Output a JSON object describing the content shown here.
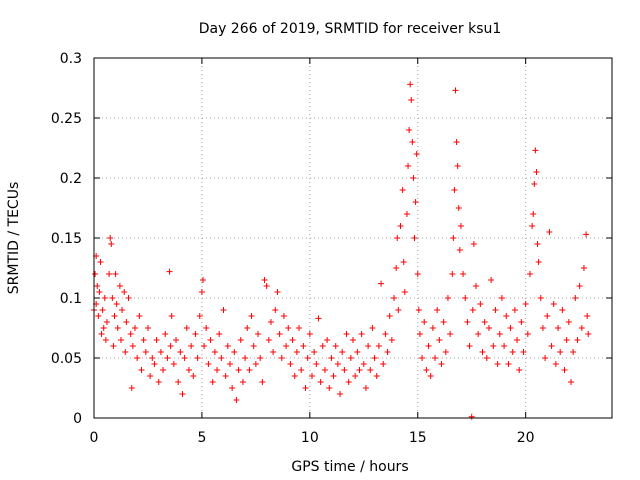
{
  "chart_data": {
    "type": "scatter",
    "title": "Day 266 of 2019, SRMTID for receiver ksu1",
    "xlabel": "GPS time / hours",
    "ylabel": "SRMTID / TECUs",
    "xlim": [
      0,
      24
    ],
    "ylim": [
      0,
      0.3
    ],
    "x_ticks": [
      0,
      5,
      10,
      15,
      20
    ],
    "x_tick_labels": [
      "0",
      "5",
      "10",
      "15",
      "20"
    ],
    "y_ticks": [
      0,
      0.05,
      0.1,
      0.15,
      0.2,
      0.25,
      0.3
    ],
    "y_tick_labels": [
      "0",
      "0.05",
      "0.1",
      "0.15",
      "0.2",
      "0.25",
      "0.3"
    ],
    "grid": true,
    "marker": "+",
    "color": "#ff0000",
    "series": [
      {
        "name": "SRMTID",
        "points": [
          [
            0.0,
            0.09
          ],
          [
            0.05,
            0.12
          ],
          [
            0.1,
            0.135
          ],
          [
            0.1,
            0.095
          ],
          [
            0.15,
            0.11
          ],
          [
            0.2,
            0.085
          ],
          [
            0.25,
            0.105
          ],
          [
            0.3,
            0.13
          ],
          [
            0.35,
            0.07
          ],
          [
            0.4,
            0.09
          ],
          [
            0.45,
            0.075
          ],
          [
            0.5,
            0.1
          ],
          [
            0.55,
            0.065
          ],
          [
            0.6,
            0.08
          ],
          [
            0.7,
            0.12
          ],
          [
            0.75,
            0.15
          ],
          [
            0.8,
            0.145
          ],
          [
            0.85,
            0.1
          ],
          [
            0.9,
            0.06
          ],
          [
            0.95,
            0.085
          ],
          [
            1.0,
            0.12
          ],
          [
            1.05,
            0.095
          ],
          [
            1.1,
            0.075
          ],
          [
            1.2,
            0.11
          ],
          [
            1.25,
            0.065
          ],
          [
            1.3,
            0.09
          ],
          [
            1.4,
            0.105
          ],
          [
            1.45,
            0.055
          ],
          [
            1.5,
            0.08
          ],
          [
            1.6,
            0.1
          ],
          [
            1.7,
            0.07
          ],
          [
            1.75,
            0.025
          ],
          [
            1.8,
            0.06
          ],
          [
            1.9,
            0.075
          ],
          [
            2.0,
            0.05
          ],
          [
            2.1,
            0.085
          ],
          [
            2.2,
            0.04
          ],
          [
            2.3,
            0.065
          ],
          [
            2.4,
            0.055
          ],
          [
            2.5,
            0.075
          ],
          [
            2.6,
            0.035
          ],
          [
            2.7,
            0.05
          ],
          [
            2.8,
            0.045
          ],
          [
            2.9,
            0.065
          ],
          [
            3.0,
            0.03
          ],
          [
            3.1,
            0.055
          ],
          [
            3.2,
            0.04
          ],
          [
            3.3,
            0.07
          ],
          [
            3.4,
            0.05
          ],
          [
            3.5,
            0.122
          ],
          [
            3.55,
            0.06
          ],
          [
            3.6,
            0.085
          ],
          [
            3.7,
            0.045
          ],
          [
            3.8,
            0.065
          ],
          [
            3.9,
            0.03
          ],
          [
            4.0,
            0.055
          ],
          [
            4.1,
            0.02
          ],
          [
            4.2,
            0.05
          ],
          [
            4.3,
            0.075
          ],
          [
            4.4,
            0.04
          ],
          [
            4.5,
            0.06
          ],
          [
            4.6,
            0.035
          ],
          [
            4.7,
            0.07
          ],
          [
            4.8,
            0.05
          ],
          [
            4.9,
            0.085
          ],
          [
            5.0,
            0.105
          ],
          [
            5.05,
            0.115
          ],
          [
            5.1,
            0.06
          ],
          [
            5.2,
            0.075
          ],
          [
            5.3,
            0.045
          ],
          [
            5.4,
            0.065
          ],
          [
            5.5,
            0.03
          ],
          [
            5.6,
            0.055
          ],
          [
            5.7,
            0.04
          ],
          [
            5.8,
            0.07
          ],
          [
            5.9,
            0.05
          ],
          [
            6.0,
            0.09
          ],
          [
            6.1,
            0.035
          ],
          [
            6.2,
            0.06
          ],
          [
            6.3,
            0.045
          ],
          [
            6.4,
            0.025
          ],
          [
            6.5,
            0.055
          ],
          [
            6.6,
            0.015
          ],
          [
            6.7,
            0.04
          ],
          [
            6.8,
            0.065
          ],
          [
            6.9,
            0.03
          ],
          [
            7.0,
            0.05
          ],
          [
            7.1,
            0.075
          ],
          [
            7.2,
            0.04
          ],
          [
            7.3,
            0.085
          ],
          [
            7.4,
            0.06
          ],
          [
            7.5,
            0.045
          ],
          [
            7.6,
            0.07
          ],
          [
            7.7,
            0.05
          ],
          [
            7.8,
            0.03
          ],
          [
            7.9,
            0.115
          ],
          [
            8.0,
            0.11
          ],
          [
            8.1,
            0.065
          ],
          [
            8.2,
            0.08
          ],
          [
            8.3,
            0.055
          ],
          [
            8.4,
            0.09
          ],
          [
            8.5,
            0.105
          ],
          [
            8.6,
            0.07
          ],
          [
            8.7,
            0.05
          ],
          [
            8.8,
            0.085
          ],
          [
            8.9,
            0.06
          ],
          [
            9.0,
            0.075
          ],
          [
            9.1,
            0.045
          ],
          [
            9.2,
            0.065
          ],
          [
            9.3,
            0.035
          ],
          [
            9.4,
            0.055
          ],
          [
            9.5,
            0.075
          ],
          [
            9.6,
            0.04
          ],
          [
            9.7,
            0.06
          ],
          [
            9.8,
            0.025
          ],
          [
            9.9,
            0.05
          ],
          [
            10.0,
            0.07
          ],
          [
            10.1,
            0.035
          ],
          [
            10.2,
            0.055
          ],
          [
            10.3,
            0.045
          ],
          [
            10.4,
            0.083
          ],
          [
            10.5,
            0.03
          ],
          [
            10.6,
            0.06
          ],
          [
            10.7,
            0.04
          ],
          [
            10.8,
            0.065
          ],
          [
            10.9,
            0.025
          ],
          [
            11.0,
            0.05
          ],
          [
            11.1,
            0.035
          ],
          [
            11.2,
            0.06
          ],
          [
            11.3,
            0.045
          ],
          [
            11.4,
            0.02
          ],
          [
            11.5,
            0.055
          ],
          [
            11.6,
            0.04
          ],
          [
            11.7,
            0.07
          ],
          [
            11.8,
            0.03
          ],
          [
            11.9,
            0.05
          ],
          [
            12.0,
            0.065
          ],
          [
            12.1,
            0.035
          ],
          [
            12.2,
            0.055
          ],
          [
            12.3,
            0.04
          ],
          [
            12.4,
            0.07
          ],
          [
            12.5,
            0.045
          ],
          [
            12.6,
            0.025
          ],
          [
            12.7,
            0.06
          ],
          [
            12.8,
            0.04
          ],
          [
            12.9,
            0.075
          ],
          [
            13.0,
            0.05
          ],
          [
            13.1,
            0.035
          ],
          [
            13.2,
            0.06
          ],
          [
            13.3,
            0.112
          ],
          [
            13.4,
            0.045
          ],
          [
            13.5,
            0.07
          ],
          [
            13.6,
            0.055
          ],
          [
            13.7,
            0.085
          ],
          [
            13.8,
            0.065
          ],
          [
            13.9,
            0.1
          ],
          [
            14.0,
            0.125
          ],
          [
            14.05,
            0.15
          ],
          [
            14.1,
            0.09
          ],
          [
            14.2,
            0.16
          ],
          [
            14.3,
            0.19
          ],
          [
            14.35,
            0.13
          ],
          [
            14.4,
            0.105
          ],
          [
            14.5,
            0.17
          ],
          [
            14.55,
            0.21
          ],
          [
            14.6,
            0.24
          ],
          [
            14.65,
            0.278
          ],
          [
            14.7,
            0.265
          ],
          [
            14.75,
            0.23
          ],
          [
            14.8,
            0.2
          ],
          [
            14.85,
            0.15
          ],
          [
            14.9,
            0.18
          ],
          [
            14.95,
            0.22
          ],
          [
            15.0,
            0.12
          ],
          [
            15.05,
            0.09
          ],
          [
            15.1,
            0.07
          ],
          [
            15.2,
            0.05
          ],
          [
            15.3,
            0.08
          ],
          [
            15.4,
            0.04
          ],
          [
            15.5,
            0.06
          ],
          [
            15.6,
            0.035
          ],
          [
            15.7,
            0.075
          ],
          [
            15.8,
            0.05
          ],
          [
            15.9,
            0.09
          ],
          [
            16.0,
            0.065
          ],
          [
            16.1,
            0.045
          ],
          [
            16.2,
            0.08
          ],
          [
            16.3,
            0.055
          ],
          [
            16.4,
            0.1
          ],
          [
            16.5,
            0.07
          ],
          [
            16.6,
            0.12
          ],
          [
            16.65,
            0.15
          ],
          [
            16.7,
            0.19
          ],
          [
            16.75,
            0.273
          ],
          [
            16.8,
            0.23
          ],
          [
            16.85,
            0.21
          ],
          [
            16.9,
            0.175
          ],
          [
            16.95,
            0.14
          ],
          [
            17.0,
            0.16
          ],
          [
            17.1,
            0.12
          ],
          [
            17.2,
            0.1
          ],
          [
            17.3,
            0.08
          ],
          [
            17.4,
            0.06
          ],
          [
            17.5,
            0.001
          ],
          [
            17.55,
            0.09
          ],
          [
            17.6,
            0.145
          ],
          [
            17.7,
            0.11
          ],
          [
            17.8,
            0.07
          ],
          [
            17.9,
            0.095
          ],
          [
            18.0,
            0.055
          ],
          [
            18.1,
            0.08
          ],
          [
            18.2,
            0.05
          ],
          [
            18.3,
            0.075
          ],
          [
            18.4,
            0.115
          ],
          [
            18.5,
            0.06
          ],
          [
            18.6,
            0.09
          ],
          [
            18.7,
            0.045
          ],
          [
            18.8,
            0.07
          ],
          [
            18.9,
            0.1
          ],
          [
            19.0,
            0.06
          ],
          [
            19.1,
            0.085
          ],
          [
            19.2,
            0.045
          ],
          [
            19.3,
            0.075
          ],
          [
            19.4,
            0.055
          ],
          [
            19.5,
            0.09
          ],
          [
            19.6,
            0.065
          ],
          [
            19.7,
            0.04
          ],
          [
            19.8,
            0.08
          ],
          [
            19.9,
            0.055
          ],
          [
            20.0,
            0.095
          ],
          [
            20.1,
            0.07
          ],
          [
            20.2,
            0.12
          ],
          [
            20.3,
            0.16
          ],
          [
            20.35,
            0.17
          ],
          [
            20.4,
            0.195
          ],
          [
            20.45,
            0.223
          ],
          [
            20.5,
            0.205
          ],
          [
            20.55,
            0.145
          ],
          [
            20.6,
            0.13
          ],
          [
            20.7,
            0.1
          ],
          [
            20.8,
            0.075
          ],
          [
            20.9,
            0.05
          ],
          [
            21.0,
            0.085
          ],
          [
            21.1,
            0.155
          ],
          [
            21.2,
            0.06
          ],
          [
            21.3,
            0.095
          ],
          [
            21.4,
            0.045
          ],
          [
            21.5,
            0.075
          ],
          [
            21.6,
            0.055
          ],
          [
            21.7,
            0.09
          ],
          [
            21.8,
            0.04
          ],
          [
            21.9,
            0.065
          ],
          [
            22.0,
            0.08
          ],
          [
            22.1,
            0.03
          ],
          [
            22.2,
            0.055
          ],
          [
            22.3,
            0.1
          ],
          [
            22.4,
            0.065
          ],
          [
            22.5,
            0.11
          ],
          [
            22.6,
            0.075
          ],
          [
            22.7,
            0.125
          ],
          [
            22.8,
            0.153
          ],
          [
            22.85,
            0.085
          ],
          [
            22.9,
            0.07
          ]
        ]
      }
    ]
  }
}
